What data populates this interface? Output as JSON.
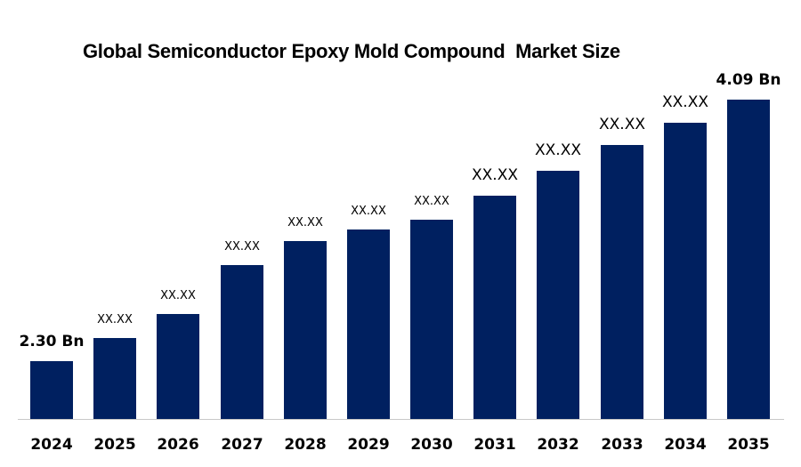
{
  "chart_data": {
    "type": "bar",
    "title": "Global Semiconductor Epoxy Mold Compound  Market Size",
    "categories": [
      "2024",
      "2025",
      "2026",
      "2027",
      "2028",
      "2029",
      "2030",
      "2031",
      "2032",
      "2033",
      "2034",
      "2035"
    ],
    "series": [
      {
        "name": "Market Size (Bn)",
        "values": [
          2.3,
          2.46,
          2.62,
          2.96,
          3.12,
          3.2,
          3.27,
          3.43,
          3.6,
          3.78,
          3.93,
          4.09
        ]
      }
    ],
    "value_labels": [
      "2.30 Bn",
      "XX.XX",
      "XX.XX",
      "XX.XX",
      "XX.XX",
      "XX.XX",
      "XX.XX",
      "XX.XX",
      "XX.XX",
      "XX.XX",
      "XX.XX",
      "4.09 Bn"
    ],
    "first_bar_label": "2.30 Bn",
    "last_bar_label": "4.09 Bn",
    "xlabel": "",
    "ylabel": "",
    "grid": false,
    "legend": false,
    "y_axis_shown": false,
    "baseline_value_estimate": 1.9,
    "note_middle_values_masked": "XX.XX",
    "colors": {
      "bar": "#002060",
      "axis_line": "#c8c8c8",
      "text": "#000000",
      "background": "#ffffff"
    }
  }
}
